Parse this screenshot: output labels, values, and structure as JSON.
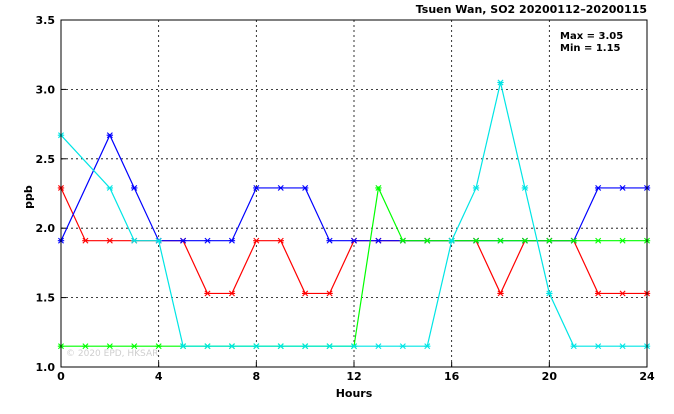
{
  "chart_data": {
    "type": "line",
    "title": "Tsuen Wan, SO2 20200112–20200115",
    "stats": {
      "max_label": "Max = 3.05",
      "min_label": "Min = 1.15"
    },
    "xlabel": "Hours",
    "ylabel": "ppb",
    "xlim": [
      0,
      24
    ],
    "ylim": [
      1.0,
      3.5
    ],
    "xticks": [
      0,
      4,
      8,
      12,
      16,
      20,
      24
    ],
    "yticks": [
      1.0,
      1.5,
      2.0,
      2.5,
      3.0,
      3.5
    ],
    "grid": true,
    "watermark": "© 2020 EPD, HKSAR",
    "x": [
      0,
      1,
      2,
      3,
      4,
      5,
      6,
      7,
      8,
      9,
      10,
      11,
      12,
      13,
      14,
      15,
      16,
      17,
      18,
      19,
      20,
      21,
      22,
      23,
      24
    ],
    "series": [
      {
        "color": "#ff0000",
        "values": [
          2.29,
          1.91,
          1.91,
          1.91,
          1.91,
          1.91,
          1.53,
          1.53,
          1.91,
          1.91,
          1.53,
          1.53,
          1.91,
          1.91,
          1.91,
          1.91,
          1.91,
          1.91,
          1.53,
          1.91,
          1.91,
          1.91,
          1.53,
          1.53,
          1.53
        ]
      },
      {
        "color": "#0000ff",
        "values": [
          1.91,
          null,
          2.67,
          2.29,
          1.91,
          1.91,
          1.91,
          1.91,
          2.29,
          2.29,
          2.29,
          1.91,
          1.91,
          1.91,
          1.91,
          1.91,
          1.91,
          1.91,
          1.91,
          1.91,
          1.91,
          1.91,
          2.29,
          2.29,
          2.29
        ]
      },
      {
        "color": "#00ff00",
        "values": [
          1.15,
          1.15,
          1.15,
          1.15,
          1.15,
          1.15,
          1.15,
          1.15,
          1.15,
          1.15,
          1.15,
          1.15,
          1.15,
          2.29,
          1.91,
          1.91,
          1.91,
          1.91,
          1.91,
          1.91,
          1.91,
          1.91,
          1.91,
          1.91,
          1.91
        ]
      },
      {
        "color": "#00e5e5",
        "values": [
          2.67,
          null,
          2.29,
          1.91,
          1.91,
          1.15,
          1.15,
          1.15,
          1.15,
          1.15,
          1.15,
          1.15,
          1.15,
          1.15,
          1.15,
          1.15,
          1.91,
          2.29,
          3.05,
          2.29,
          1.53,
          1.15,
          1.15,
          1.15,
          1.15
        ]
      }
    ]
  }
}
